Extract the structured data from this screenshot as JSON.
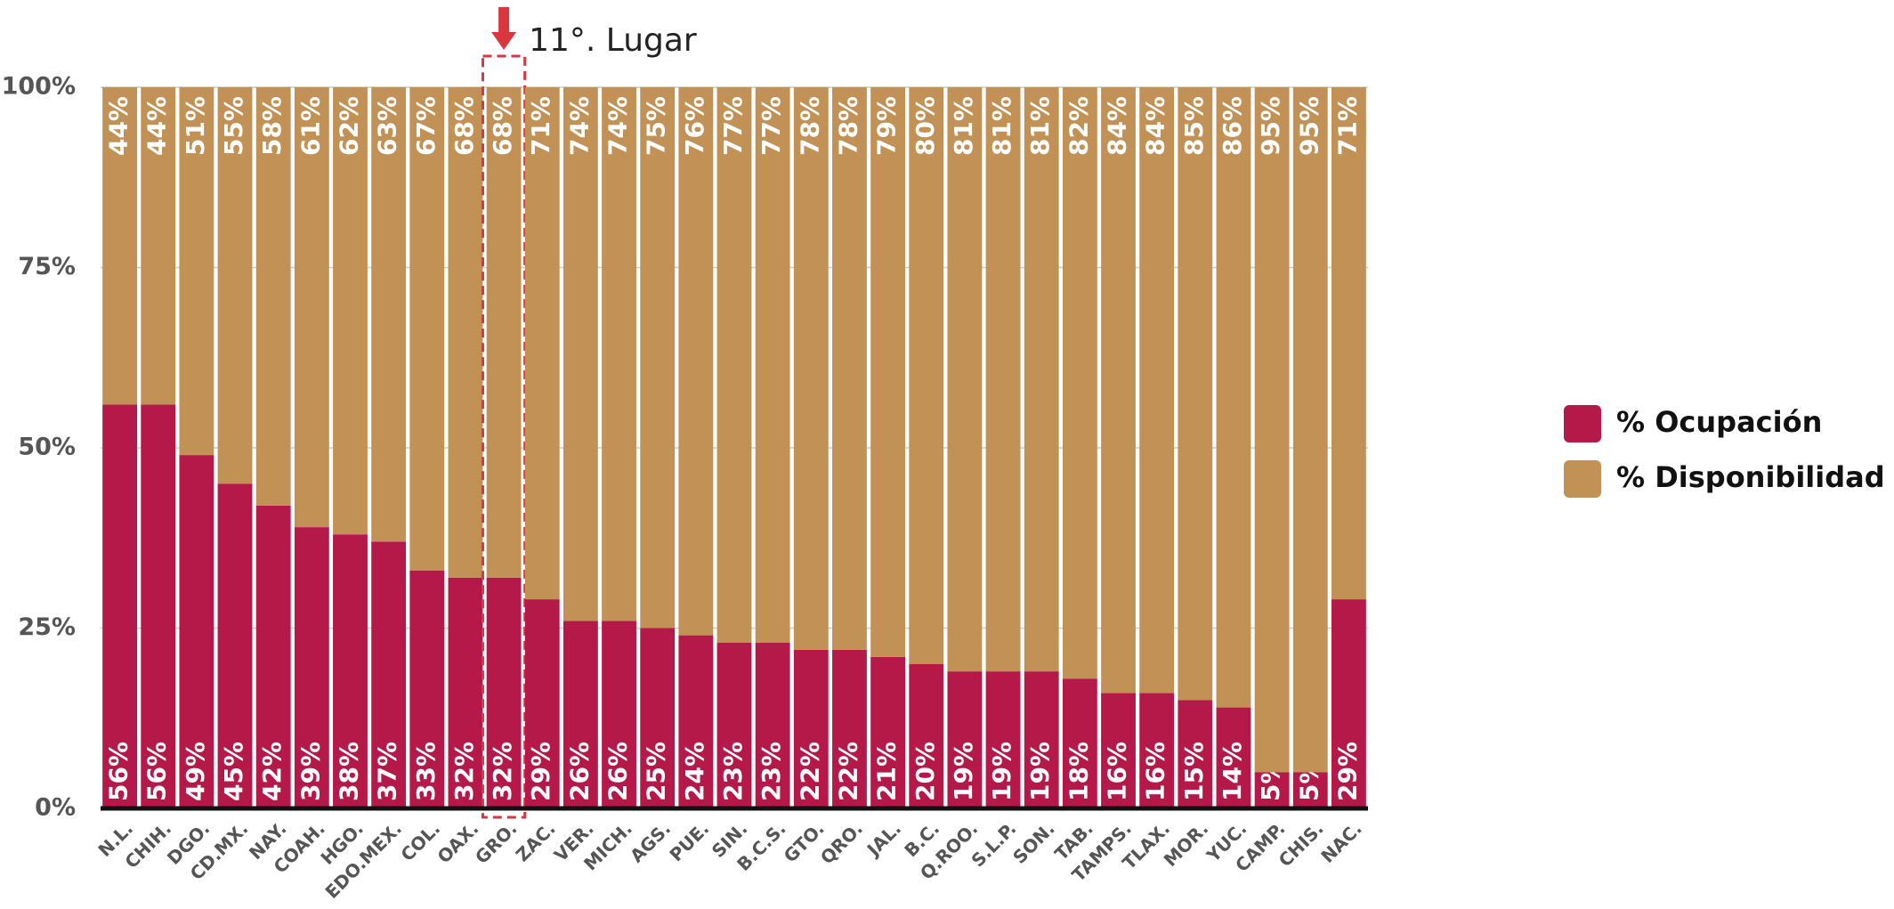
{
  "chart_data": {
    "type": "stacked_bar",
    "categories": [
      "N.L.",
      "CHIH.",
      "DGO.",
      "CD.MX.",
      "NAY.",
      "COAH.",
      "HGO.",
      "EDO.MEX.",
      "COL.",
      "OAX.",
      "GRO.",
      "ZAC.",
      "VER.",
      "MICH.",
      "AGS.",
      "PUE.",
      "SIN.",
      "B.C.S.",
      "GTO.",
      "QRO.",
      "JAL.",
      "B.C.",
      "Q.ROO.",
      "S.L.P.",
      "SON.",
      "TAB.",
      "TAMPS.",
      "TLAX.",
      "MOR.",
      "YUC.",
      "CAMP.",
      "CHIS.",
      "NAC."
    ],
    "series": [
      {
        "name": "% Ocupación",
        "color": "#b5194a",
        "values": [
          56,
          56,
          49,
          45,
          42,
          39,
          38,
          37,
          33,
          32,
          32,
          29,
          26,
          26,
          25,
          24,
          23,
          23,
          22,
          22,
          21,
          20,
          19,
          19,
          19,
          18,
          16,
          16,
          15,
          14,
          5,
          5,
          29
        ],
        "value_labels": [
          "56%",
          "56%",
          "49%",
          "45%",
          "42%",
          "39%",
          "38%",
          "37%",
          "33%",
          "32%",
          "32%",
          "29%",
          "26%",
          "26%",
          "25%",
          "24%",
          "23%",
          "23%",
          "22%",
          "22%",
          "21%",
          "20%",
          "19%",
          "19%",
          "19%",
          "18%",
          "16%",
          "16%",
          "15%",
          "14%",
          "5%",
          "5%",
          "29%"
        ]
      },
      {
        "name": "% Disponibilidad",
        "color": "#c19155",
        "values": [
          44,
          44,
          51,
          55,
          58,
          61,
          62,
          63,
          67,
          68,
          68,
          71,
          74,
          74,
          75,
          76,
          77,
          77,
          78,
          78,
          79,
          80,
          81,
          81,
          81,
          82,
          84,
          84,
          85,
          86,
          95,
          95,
          71
        ],
        "value_labels": [
          "44%",
          "44%",
          "51%",
          "55%",
          "58%",
          "61%",
          "62%",
          "63%",
          "67%",
          "68%",
          "68%",
          "71%",
          "74%",
          "74%",
          "75%",
          "76%",
          "77%",
          "77%",
          "78%",
          "78%",
          "79%",
          "80%",
          "81%",
          "81%",
          "81%",
          "82%",
          "84%",
          "84%",
          "85%",
          "86%",
          "95%",
          "95%",
          "71%"
        ]
      }
    ],
    "ylim": [
      0,
      100
    ],
    "yticks": [
      {
        "value": 0,
        "label": "0%"
      },
      {
        "value": 25,
        "label": "25%"
      },
      {
        "value": 50,
        "label": "50%"
      },
      {
        "value": 75,
        "label": "75%"
      },
      {
        "value": 100,
        "label": "100%"
      }
    ],
    "grid": true,
    "legend": "right",
    "annotation": {
      "text": "11°. Lugar",
      "category": "GRO."
    }
  }
}
